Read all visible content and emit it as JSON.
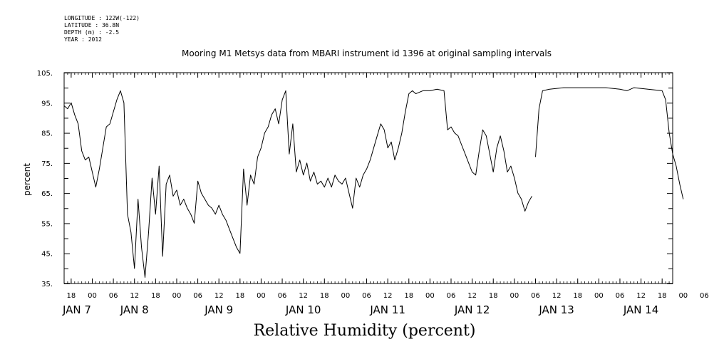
{
  "header": {
    "longitude": "LONGITUDE : 122W(-122)",
    "latitude": "LATITUDE : 36.8N",
    "depth": "DEPTH (m) : -2.5",
    "year": "YEAR : 2012"
  },
  "chart_data": {
    "type": "line",
    "title": "Mooring M1 Metsys data from MBARI instrument id 1396 at original sampling intervals",
    "xlabel": "Relative Humidity (percent)",
    "ylabel": "percent",
    "ylim": [
      35,
      105
    ],
    "yticks": [
      35,
      45,
      55,
      65,
      75,
      85,
      95,
      105
    ],
    "xlim": [
      "2012-01-07T16:00",
      "2012-01-14T21:00"
    ],
    "hour_ticks": [
      {
        "t": "2012-01-07T18:00",
        "label": "18"
      },
      {
        "t": "2012-01-08T00:00",
        "label": "00"
      },
      {
        "t": "2012-01-08T06:00",
        "label": "06"
      },
      {
        "t": "2012-01-08T12:00",
        "label": "12"
      },
      {
        "t": "2012-01-08T18:00",
        "label": "18"
      },
      {
        "t": "2012-01-09T00:00",
        "label": "00"
      },
      {
        "t": "2012-01-09T06:00",
        "label": "06"
      },
      {
        "t": "2012-01-09T12:00",
        "label": "12"
      },
      {
        "t": "2012-01-09T18:00",
        "label": "18"
      },
      {
        "t": "2012-01-10T00:00",
        "label": "00"
      },
      {
        "t": "2012-01-10T06:00",
        "label": "06"
      },
      {
        "t": "2012-01-10T12:00",
        "label": "12"
      },
      {
        "t": "2012-01-10T18:00",
        "label": "18"
      },
      {
        "t": "2012-01-11T00:00",
        "label": "00"
      },
      {
        "t": "2012-01-11T06:00",
        "label": "06"
      },
      {
        "t": "2012-01-11T12:00",
        "label": "12"
      },
      {
        "t": "2012-01-11T18:00",
        "label": "18"
      },
      {
        "t": "2012-01-12T00:00",
        "label": "00"
      },
      {
        "t": "2012-01-12T06:00",
        "label": "06"
      },
      {
        "t": "2012-01-12T12:00",
        "label": "12"
      },
      {
        "t": "2012-01-12T18:00",
        "label": "18"
      },
      {
        "t": "2012-01-13T00:00",
        "label": "00"
      },
      {
        "t": "2012-01-13T06:00",
        "label": "06"
      },
      {
        "t": "2012-01-13T12:00",
        "label": "12"
      },
      {
        "t": "2012-01-13T18:00",
        "label": "18"
      },
      {
        "t": "2012-01-14T00:00",
        "label": "00"
      },
      {
        "t": "2012-01-14T06:00",
        "label": "06"
      },
      {
        "t": "2012-01-14T12:00",
        "label": "12"
      },
      {
        "t": "2012-01-14T18:00",
        "label": "18"
      },
      {
        "t": "2012-01-15T00:00",
        "label": "00"
      },
      {
        "t": "2012-01-15T06:00",
        "label": "06"
      }
    ],
    "day_labels": [
      {
        "t": "2012-01-07T12:00",
        "label": "JAN  7"
      },
      {
        "t": "2012-01-08T12:00",
        "label": "JAN  8"
      },
      {
        "t": "2012-01-09T12:00",
        "label": "JAN  9"
      },
      {
        "t": "2012-01-10T12:00",
        "label": "JAN 10"
      },
      {
        "t": "2012-01-11T12:00",
        "label": "JAN 11"
      },
      {
        "t": "2012-01-12T12:00",
        "label": "JAN 12"
      },
      {
        "t": "2012-01-13T12:00",
        "label": "JAN 13"
      },
      {
        "t": "2012-01-14T12:00",
        "label": "JAN 14"
      }
    ],
    "series": [
      {
        "segments": [
          [
            [
              "2012-01-07T16:00",
              94
            ],
            [
              "2012-01-07T17:00",
              93
            ],
            [
              "2012-01-07T18:00",
              95
            ],
            [
              "2012-01-07T19:00",
              91
            ],
            [
              "2012-01-07T20:00",
              88
            ],
            [
              "2012-01-07T21:00",
              79
            ],
            [
              "2012-01-07T22:00",
              76
            ],
            [
              "2012-01-07T23:00",
              77
            ],
            [
              "2012-01-08T00:00",
              72
            ],
            [
              "2012-01-08T01:00",
              67
            ],
            [
              "2012-01-08T02:00",
              73
            ],
            [
              "2012-01-08T03:00",
              80
            ],
            [
              "2012-01-08T04:00",
              87
            ],
            [
              "2012-01-08T05:00",
              88
            ],
            [
              "2012-01-08T06:00",
              92
            ],
            [
              "2012-01-08T07:00",
              96
            ],
            [
              "2012-01-08T08:00",
              99
            ],
            [
              "2012-01-08T09:00",
              95
            ],
            [
              "2012-01-08T10:00",
              58
            ],
            [
              "2012-01-08T11:00",
              52
            ],
            [
              "2012-01-08T12:00",
              40
            ],
            [
              "2012-01-08T13:00",
              63
            ],
            [
              "2012-01-08T14:00",
              47
            ],
            [
              "2012-01-08T15:00",
              37
            ],
            [
              "2012-01-08T16:00",
              52
            ],
            [
              "2012-01-08T17:00",
              70
            ],
            [
              "2012-01-08T18:00",
              58
            ],
            [
              "2012-01-08T19:00",
              74
            ],
            [
              "2012-01-08T20:00",
              44
            ],
            [
              "2012-01-08T21:00",
              68
            ],
            [
              "2012-01-08T22:00",
              71
            ],
            [
              "2012-01-08T23:00",
              64
            ],
            [
              "2012-01-09T00:00",
              66
            ],
            [
              "2012-01-09T01:00",
              61
            ],
            [
              "2012-01-09T02:00",
              63
            ],
            [
              "2012-01-09T03:00",
              60
            ],
            [
              "2012-01-09T04:00",
              58
            ],
            [
              "2012-01-09T05:00",
              55
            ],
            [
              "2012-01-09T06:00",
              69
            ],
            [
              "2012-01-09T07:00",
              65
            ],
            [
              "2012-01-09T08:00",
              63
            ],
            [
              "2012-01-09T09:00",
              61
            ],
            [
              "2012-01-09T10:00",
              60
            ],
            [
              "2012-01-09T11:00",
              58
            ],
            [
              "2012-01-09T12:00",
              61
            ],
            [
              "2012-01-09T13:00",
              58
            ],
            [
              "2012-01-09T14:00",
              56
            ],
            [
              "2012-01-09T15:00",
              53
            ],
            [
              "2012-01-09T16:00",
              50
            ],
            [
              "2012-01-09T17:00",
              47
            ],
            [
              "2012-01-09T18:00",
              45
            ],
            [
              "2012-01-09T19:00",
              73
            ],
            [
              "2012-01-09T20:00",
              61
            ],
            [
              "2012-01-09T21:00",
              71
            ],
            [
              "2012-01-09T22:00",
              68
            ],
            [
              "2012-01-09T23:00",
              77
            ],
            [
              "2012-01-10T00:00",
              80
            ],
            [
              "2012-01-10T01:00",
              85
            ],
            [
              "2012-01-10T02:00",
              87
            ],
            [
              "2012-01-10T03:00",
              91
            ],
            [
              "2012-01-10T04:00",
              93
            ],
            [
              "2012-01-10T05:00",
              88
            ],
            [
              "2012-01-10T06:00",
              96
            ],
            [
              "2012-01-10T07:00",
              99
            ],
            [
              "2012-01-10T08:00",
              78
            ],
            [
              "2012-01-10T09:00",
              88
            ],
            [
              "2012-01-10T10:00",
              72
            ],
            [
              "2012-01-10T11:00",
              76
            ],
            [
              "2012-01-10T12:00",
              71
            ],
            [
              "2012-01-10T13:00",
              75
            ],
            [
              "2012-01-10T14:00",
              69
            ],
            [
              "2012-01-10T15:00",
              72
            ],
            [
              "2012-01-10T16:00",
              68
            ],
            [
              "2012-01-10T17:00",
              69
            ],
            [
              "2012-01-10T18:00",
              67
            ],
            [
              "2012-01-10T19:00",
              70
            ],
            [
              "2012-01-10T20:00",
              67
            ],
            [
              "2012-01-10T21:00",
              71
            ],
            [
              "2012-01-10T22:00",
              69
            ],
            [
              "2012-01-10T23:00",
              68
            ],
            [
              "2012-01-11T00:00",
              70
            ],
            [
              "2012-01-11T01:00",
              65
            ],
            [
              "2012-01-11T02:00",
              60
            ],
            [
              "2012-01-11T03:00",
              70
            ],
            [
              "2012-01-11T04:00",
              67
            ],
            [
              "2012-01-11T05:00",
              71
            ],
            [
              "2012-01-11T06:00",
              73
            ],
            [
              "2012-01-11T07:00",
              76
            ],
            [
              "2012-01-11T08:00",
              80
            ],
            [
              "2012-01-11T09:00",
              84
            ],
            [
              "2012-01-11T10:00",
              88
            ],
            [
              "2012-01-11T11:00",
              86
            ],
            [
              "2012-01-11T12:00",
              80
            ],
            [
              "2012-01-11T13:00",
              82
            ],
            [
              "2012-01-11T14:00",
              76
            ],
            [
              "2012-01-11T15:00",
              80
            ],
            [
              "2012-01-11T16:00",
              85
            ],
            [
              "2012-01-11T17:00",
              92
            ],
            [
              "2012-01-11T18:00",
              98
            ],
            [
              "2012-01-11T19:00",
              99
            ],
            [
              "2012-01-11T20:00",
              98
            ],
            [
              "2012-01-11T22:00",
              99
            ],
            [
              "2012-01-12T00:00",
              99
            ],
            [
              "2012-01-12T02:00",
              99.5
            ],
            [
              "2012-01-12T04:00",
              99
            ],
            [
              "2012-01-12T05:00",
              86
            ],
            [
              "2012-01-12T06:00",
              87
            ],
            [
              "2012-01-12T07:00",
              85
            ],
            [
              "2012-01-12T08:00",
              84
            ],
            [
              "2012-01-12T09:00",
              81
            ],
            [
              "2012-01-12T10:00",
              78
            ],
            [
              "2012-01-12T11:00",
              75
            ],
            [
              "2012-01-12T12:00",
              72
            ],
            [
              "2012-01-12T13:00",
              71
            ],
            [
              "2012-01-12T14:00",
              79
            ],
            [
              "2012-01-12T15:00",
              86
            ],
            [
              "2012-01-12T16:00",
              84
            ],
            [
              "2012-01-12T17:00",
              78
            ],
            [
              "2012-01-12T18:00",
              72
            ],
            [
              "2012-01-12T19:00",
              80
            ],
            [
              "2012-01-12T20:00",
              84
            ],
            [
              "2012-01-12T21:00",
              79
            ],
            [
              "2012-01-12T22:00",
              72
            ],
            [
              "2012-01-12T23:00",
              74
            ],
            [
              "2012-01-13T00:00",
              70
            ],
            [
              "2012-01-13T01:00",
              65
            ],
            [
              "2012-01-13T02:00",
              63
            ],
            [
              "2012-01-13T03:00",
              59
            ],
            [
              "2012-01-13T04:00",
              62
            ],
            [
              "2012-01-13T05:00",
              64
            ]
          ],
          [
            [
              "2012-01-13T06:00",
              77
            ],
            [
              "2012-01-13T07:00",
              93
            ],
            [
              "2012-01-13T08:00",
              99
            ],
            [
              "2012-01-13T10:00",
              99.5
            ],
            [
              "2012-01-13T14:00",
              100
            ],
            [
              "2012-01-13T18:00",
              100
            ],
            [
              "2012-01-13T22:00",
              100
            ],
            [
              "2012-01-14T02:00",
              100
            ],
            [
              "2012-01-14T06:00",
              99.5
            ],
            [
              "2012-01-14T08:00",
              99
            ],
            [
              "2012-01-14T10:00",
              100
            ],
            [
              "2012-01-14T14:00",
              99.5
            ],
            [
              "2012-01-14T18:00",
              99
            ],
            [
              "2012-01-14T19:00",
              96
            ],
            [
              "2012-01-14T20:00",
              85
            ],
            [
              "2012-01-14T21:00",
              78
            ],
            [
              "2012-01-14T22:00",
              74
            ],
            [
              "2012-01-14T23:00",
              68
            ],
            [
              "2012-01-15T00:00",
              63
            ]
          ]
        ]
      }
    ],
    "grid": false,
    "legend": "none"
  }
}
